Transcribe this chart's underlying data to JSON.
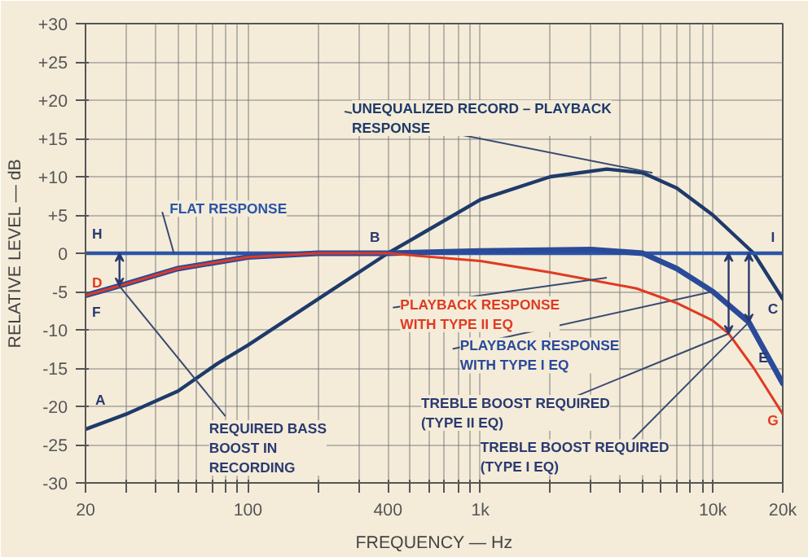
{
  "chart_data": {
    "type": "line",
    "xlabel": "FREQUENCY — Hz",
    "ylabel": "RELATIVE LEVEL — dB",
    "log": "x",
    "grid": true,
    "legend": false,
    "marker": "none",
    "line_style": "solid",
    "xlim": [
      20,
      20000
    ],
    "ylim": [
      -30,
      30
    ],
    "xticks": [
      20,
      {
        "value": 30,
        "label": null
      },
      {
        "value": 40,
        "label": null
      },
      {
        "value": 50,
        "label": null
      },
      {
        "value": 60,
        "label": null
      },
      {
        "value": 70,
        "label": null
      },
      {
        "value": 80,
        "label": null
      },
      {
        "value": 90,
        "label": null
      },
      100,
      {
        "value": 200,
        "label": null
      },
      {
        "value": 300,
        "label": null
      },
      400,
      {
        "value": 500,
        "label": null
      },
      {
        "value": 600,
        "label": null
      },
      {
        "value": 700,
        "label": null
      },
      {
        "value": 800,
        "label": null
      },
      {
        "value": 900,
        "label": null
      },
      {
        "value": 1000,
        "label": "1k"
      },
      {
        "value": 2000,
        "label": null
      },
      {
        "value": 3000,
        "label": null
      },
      {
        "value": 4000,
        "label": null
      },
      {
        "value": 5000,
        "label": null
      },
      {
        "value": 6000,
        "label": null
      },
      {
        "value": 7000,
        "label": null
      },
      {
        "value": 8000,
        "label": null
      },
      {
        "value": 9000,
        "label": null
      },
      {
        "value": 10000,
        "label": "10k"
      },
      {
        "value": 20000,
        "label": "20k"
      }
    ],
    "yticks": [
      {
        "value": 30,
        "label": "+30"
      },
      {
        "value": 25,
        "label": "+25"
      },
      {
        "value": 20,
        "label": "+20"
      },
      {
        "value": 15,
        "label": "+15"
      },
      {
        "value": 10,
        "label": "+10"
      },
      {
        "value": 5,
        "label": "+5"
      },
      0,
      -5,
      -10,
      -15,
      -20,
      -25,
      -30
    ],
    "series": [
      {
        "name": "FLAT RESPONSE",
        "color": "#2a55a8",
        "x": [
          20,
          20000
        ],
        "values": [
          0,
          0
        ]
      },
      {
        "name": "UNEQUALIZED RECORD – PLAYBACK\nRESPONSE",
        "color": "#1f3a6a",
        "x": [
          20,
          30,
          50,
          74,
          100,
          200,
          400,
          1000,
          2000,
          3500,
          5000,
          7000,
          10000,
          15000,
          20000
        ],
        "values": [
          -23,
          -21,
          -18,
          -14.4,
          -12,
          -6,
          0,
          7,
          10,
          11,
          10.5,
          8.5,
          5,
          0,
          -6
        ]
      },
      {
        "name": "PLAYBACK RESPONSE\nWITH TYPE II EQ",
        "color": "#e03a22",
        "x": [
          20,
          30,
          50,
          100,
          200,
          400,
          1000,
          2000,
          4700,
          7000,
          10000,
          11700,
          15000,
          20000
        ],
        "values": [
          -5.5,
          -4,
          -2,
          -0.5,
          0,
          0,
          -1,
          -2.5,
          -4.6,
          -6.5,
          -8.8,
          -10.5,
          -15,
          -21
        ]
      },
      {
        "name": "PLAYBACK RESPONSE\nWITH TYPE I EQ",
        "color": "#2a4a9a",
        "x": [
          20,
          30,
          50,
          100,
          200,
          400,
          1000,
          3000,
          5000,
          7000,
          10000,
          14300,
          20000
        ],
        "values": [
          -5.5,
          -4,
          -2,
          -0.5,
          0,
          0,
          0.3,
          0.5,
          0,
          -2,
          -5,
          -9,
          -17
        ]
      }
    ],
    "annotations": [
      {
        "text": "H",
        "x": 20,
        "y": 0
      },
      {
        "text": "D",
        "x": 20,
        "y": -5.5
      },
      {
        "text": "F",
        "x": 20,
        "y": -5.5
      },
      {
        "text": "A",
        "x": 20,
        "y": -23
      },
      {
        "text": "B",
        "x": 400,
        "y": 0
      },
      {
        "text": "I",
        "x": 20000,
        "y": 0
      },
      {
        "text": "C",
        "x": 20000,
        "y": -6
      },
      {
        "text": "E",
        "x": 20000,
        "y": -17
      },
      {
        "text": "G",
        "x": 20000,
        "y": -21
      },
      {
        "text": "REQUIRED BASS\nBOOST IN\nRECORDING",
        "x": 28,
        "y": -4.3
      },
      {
        "text": "TREBLE BOOST REQUIRED\n(TYPE II EQ)",
        "x": 11700,
        "y": -10.5
      },
      {
        "text": "TREBLE BOOST REQUIRED\n(TYPE I EQ)",
        "x": 14300,
        "y": -9
      }
    ]
  }
}
